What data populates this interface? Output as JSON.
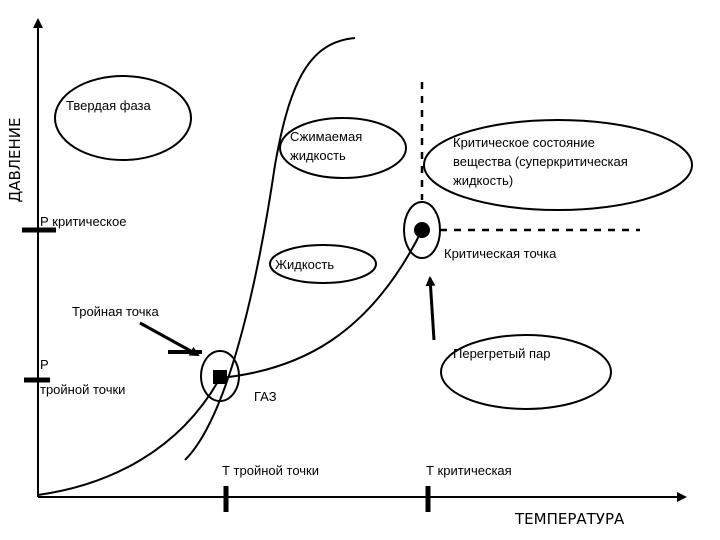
{
  "axes": {
    "y_title": "ДАВЛЕНИЕ",
    "x_title": "ТЕМПЕРАТУРА"
  },
  "ticks": {
    "p_critical": "Р критическое",
    "p_triple_line1": "Р",
    "p_triple_line2": "тройной точки",
    "t_triple": "Т тройной точки",
    "t_critical": "Т критическая"
  },
  "regions": {
    "solid": "Твердая фаза",
    "compressible_line1": "Сжимаемая",
    "compressible_line2": "жидкость",
    "liquid": "Жидкость",
    "supercritical_line1": "Критическое состояние",
    "supercritical_line2": "вещества (суперкритическая",
    "supercritical_line3": "жидкость)",
    "gas": "ГАЗ",
    "superheated": "Перегретый пар"
  },
  "points": {
    "triple": "Тройная точка",
    "critical": "Критическая точка"
  },
  "colors": {
    "ink": "#000000",
    "background": "#ffffff"
  }
}
